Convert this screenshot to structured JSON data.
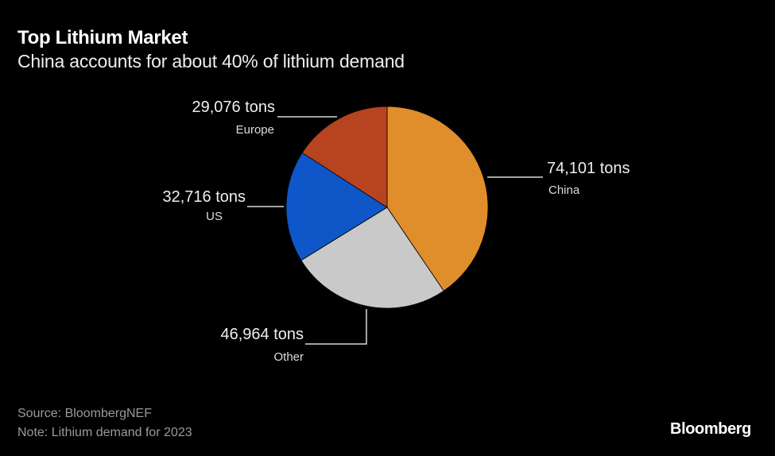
{
  "chart_data": {
    "type": "pie",
    "title": "Top Lithium Market",
    "subtitle": "China accounts for about 40% of lithium demand",
    "unit": "tons",
    "slices": [
      {
        "name": "China",
        "value": 74101,
        "value_label": "74,101 tons",
        "color": "#E08E2B"
      },
      {
        "name": "Other",
        "value": 46964,
        "value_label": "46,964 tons",
        "color": "#C9C9C9"
      },
      {
        "name": "US",
        "value": 32716,
        "value_label": "32,716 tons",
        "color": "#0F56C8"
      },
      {
        "name": "Europe",
        "value": 29076,
        "value_label": "29,076 tons",
        "color": "#B8431F"
      }
    ],
    "start_angle": "12 o'clock",
    "direction": "clockwise",
    "legend": "none"
  },
  "footer": {
    "source": "Source: BloombergNEF",
    "note": "Note: Lithium demand for 2023",
    "logo": "Bloomberg"
  }
}
